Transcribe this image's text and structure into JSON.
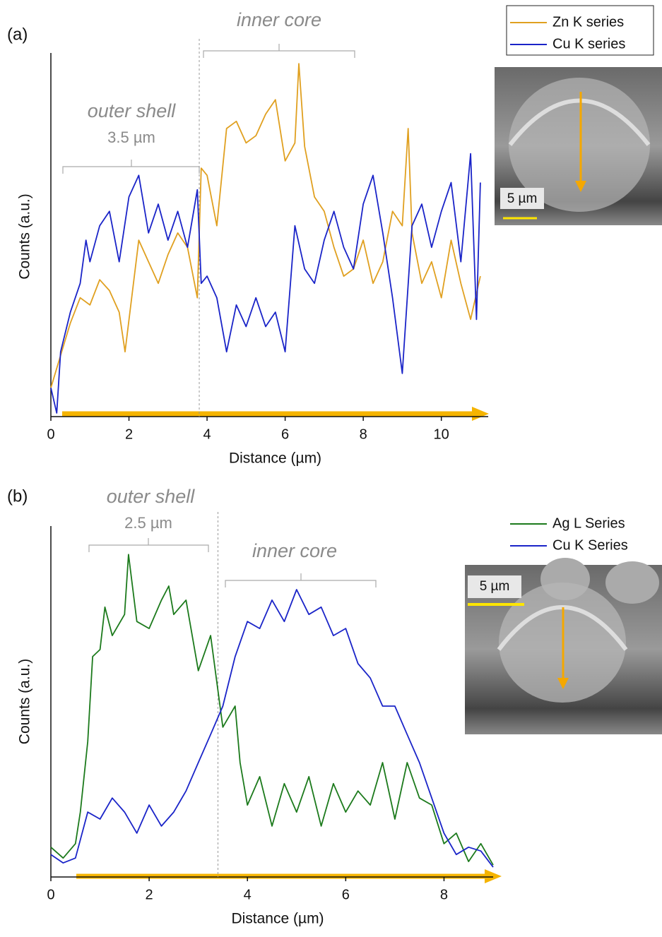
{
  "chart_data": [
    {
      "type": "line",
      "panel_label": "(a)",
      "xlabel": "Distance (µm)",
      "ylabel": "Counts (a.u.)",
      "xlim": [
        0,
        11.2
      ],
      "xticks": [
        0,
        2,
        4,
        6,
        8,
        10
      ],
      "ylim": [
        0,
        100
      ],
      "vline_x": 3.8,
      "annotations": {
        "shell_label": "outer shell",
        "shell_width": "3.5 µm",
        "core_label": "inner core"
      },
      "scale_bar_label": "5 µm",
      "series": [
        {
          "name": "Zn K series",
          "color": "#e0a020",
          "x": [
            0,
            0.25,
            0.5,
            0.75,
            1.0,
            1.25,
            1.5,
            1.75,
            1.9,
            2.25,
            2.5,
            2.75,
            3.0,
            3.25,
            3.5,
            3.75,
            3.85,
            4.0,
            4.25,
            4.5,
            4.75,
            5.0,
            5.25,
            5.5,
            5.75,
            6.0,
            6.25,
            6.35,
            6.5,
            6.75,
            7.0,
            7.25,
            7.5,
            7.75,
            8.0,
            8.25,
            8.5,
            8.75,
            9.0,
            9.15,
            9.25,
            9.5,
            9.75,
            10.0,
            10.25,
            10.5,
            10.75,
            11.0
          ],
          "values": [
            8,
            17,
            26,
            33,
            31,
            38,
            35,
            29,
            18,
            49,
            43,
            37,
            45,
            51,
            47,
            33,
            69,
            67,
            53,
            80,
            82,
            76,
            78,
            84,
            88,
            71,
            76,
            98,
            75,
            61,
            57,
            47,
            39,
            41,
            49,
            37,
            43,
            57,
            53,
            80,
            51,
            37,
            43,
            33,
            49,
            37,
            27,
            39
          ]
        },
        {
          "name": "Cu K series",
          "color": "#1a24c8",
          "x": [
            0,
            0.15,
            0.25,
            0.5,
            0.75,
            0.9,
            1.0,
            1.25,
            1.5,
            1.75,
            2.0,
            2.25,
            2.5,
            2.75,
            3.0,
            3.25,
            3.5,
            3.75,
            3.85,
            4.0,
            4.25,
            4.5,
            4.75,
            5.0,
            5.25,
            5.5,
            5.75,
            6.0,
            6.25,
            6.5,
            6.75,
            7.0,
            7.25,
            7.5,
            7.75,
            8.0,
            8.25,
            8.5,
            8.75,
            9.0,
            9.25,
            9.5,
            9.75,
            10.0,
            10.25,
            10.5,
            10.75,
            10.9,
            11.0
          ],
          "values": [
            8,
            1,
            18,
            29,
            37,
            49,
            43,
            53,
            57,
            43,
            61,
            67,
            51,
            59,
            49,
            57,
            47,
            63,
            37,
            39,
            33,
            18,
            31,
            25,
            33,
            25,
            29,
            18,
            53,
            41,
            37,
            49,
            57,
            47,
            41,
            59,
            67,
            51,
            33,
            12,
            53,
            59,
            47,
            57,
            65,
            43,
            73,
            27,
            65
          ]
        }
      ]
    },
    {
      "type": "line",
      "panel_label": "(b)",
      "xlabel": "Distance (µm)",
      "ylabel": "Counts (a.u.)",
      "xlim": [
        0,
        9.0
      ],
      "xticks": [
        0,
        2,
        4,
        6,
        8
      ],
      "ylim": [
        0,
        100
      ],
      "vline_x": 3.4,
      "annotations": {
        "shell_label": "outer shell",
        "shell_width": "2.5 µm",
        "core_label": "inner core"
      },
      "scale_bar_label": "5 µm",
      "series": [
        {
          "name": "Ag L Series",
          "color": "#1c7a1c",
          "x": [
            0,
            0.25,
            0.5,
            0.6,
            0.75,
            0.85,
            1.0,
            1.1,
            1.25,
            1.5,
            1.58,
            1.75,
            2.0,
            2.25,
            2.4,
            2.5,
            2.75,
            3.0,
            3.25,
            3.5,
            3.75,
            3.85,
            4.0,
            4.25,
            4.5,
            4.75,
            5.0,
            5.25,
            5.5,
            5.75,
            6.0,
            6.25,
            6.5,
            6.75,
            7.0,
            7.25,
            7.5,
            7.75,
            8.0,
            8.25,
            8.5,
            8.75,
            9.0
          ],
          "values": [
            8.5,
            5.4,
            9.5,
            18.5,
            38.6,
            62.8,
            64.8,
            76.9,
            68.8,
            74.8,
            91.9,
            72.8,
            70.8,
            78.9,
            82.9,
            74.8,
            78.9,
            58.8,
            68.8,
            42.7,
            48.7,
            32.6,
            20.5,
            28.6,
            14.5,
            26.6,
            18.5,
            28.6,
            14.5,
            26.6,
            18.5,
            24.5,
            20.5,
            32.6,
            16.5,
            32.6,
            22.5,
            20.5,
            9.5,
            12.5,
            4.4,
            9.5,
            3.4
          ]
        },
        {
          "name": "Cu K Series",
          "color": "#1a24c8",
          "x": [
            0,
            0.25,
            0.5,
            0.75,
            1.0,
            1.25,
            1.5,
            1.75,
            2.0,
            2.25,
            2.5,
            2.75,
            3.0,
            3.25,
            3.5,
            3.75,
            4.0,
            4.25,
            4.5,
            4.75,
            5.0,
            5.25,
            5.5,
            5.75,
            6.0,
            6.25,
            6.5,
            6.75,
            7.0,
            7.25,
            7.5,
            7.75,
            8.0,
            8.25,
            8.5,
            8.75,
            9.0
          ],
          "values": [
            6.4,
            4,
            5.4,
            18.5,
            16.5,
            22.5,
            18.5,
            12.5,
            20.5,
            14.5,
            18.5,
            24.5,
            32.6,
            40.6,
            48.7,
            62.8,
            72.8,
            70.8,
            78.9,
            72.8,
            81.9,
            74.8,
            76.9,
            68.8,
            70.8,
            60.8,
            56.7,
            48.7,
            48.7,
            40.6,
            32.6,
            22.5,
            12.5,
            6.4,
            8.5,
            7.4,
            2.8
          ]
        }
      ]
    }
  ]
}
